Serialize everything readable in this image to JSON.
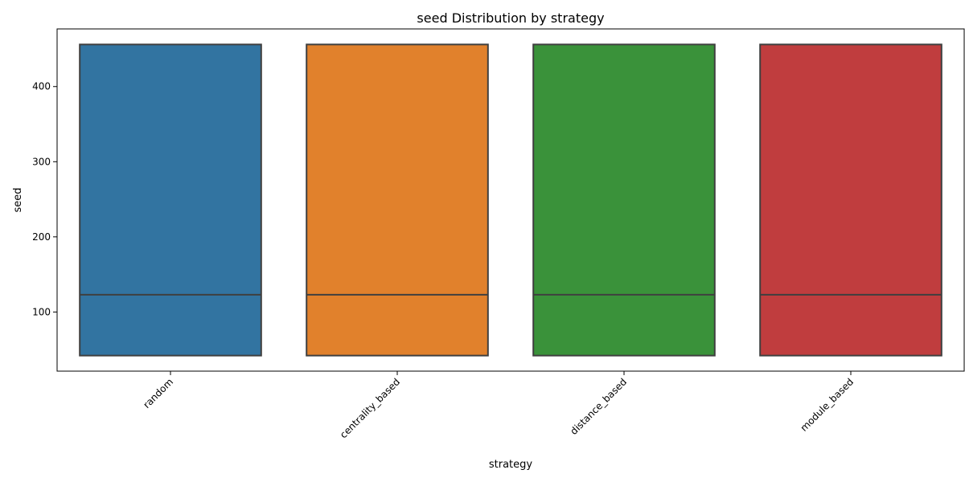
{
  "chart_data": {
    "type": "box",
    "title": "seed Distribution by strategy",
    "xlabel": "strategy",
    "ylabel": "seed",
    "categories": [
      "random",
      "centrality_based",
      "distance_based",
      "module_based"
    ],
    "series": [
      {
        "category": "random",
        "min": 42,
        "q1": 42,
        "median": 123,
        "q3": 456,
        "max": 456,
        "color": "#3274a1"
      },
      {
        "category": "centrality_based",
        "min": 42,
        "q1": 42,
        "median": 123,
        "q3": 456,
        "max": 456,
        "color": "#e1812c"
      },
      {
        "category": "distance_based",
        "min": 42,
        "q1": 42,
        "median": 123,
        "q3": 456,
        "max": 456,
        "color": "#3a923a"
      },
      {
        "category": "module_based",
        "min": 42,
        "q1": 42,
        "median": 123,
        "q3": 456,
        "max": 456,
        "color": "#c03d3e"
      }
    ],
    "yticks": [
      100,
      200,
      300,
      400
    ],
    "ylim": [
      21.3,
      476.7
    ],
    "grid": false,
    "legend": "none"
  }
}
